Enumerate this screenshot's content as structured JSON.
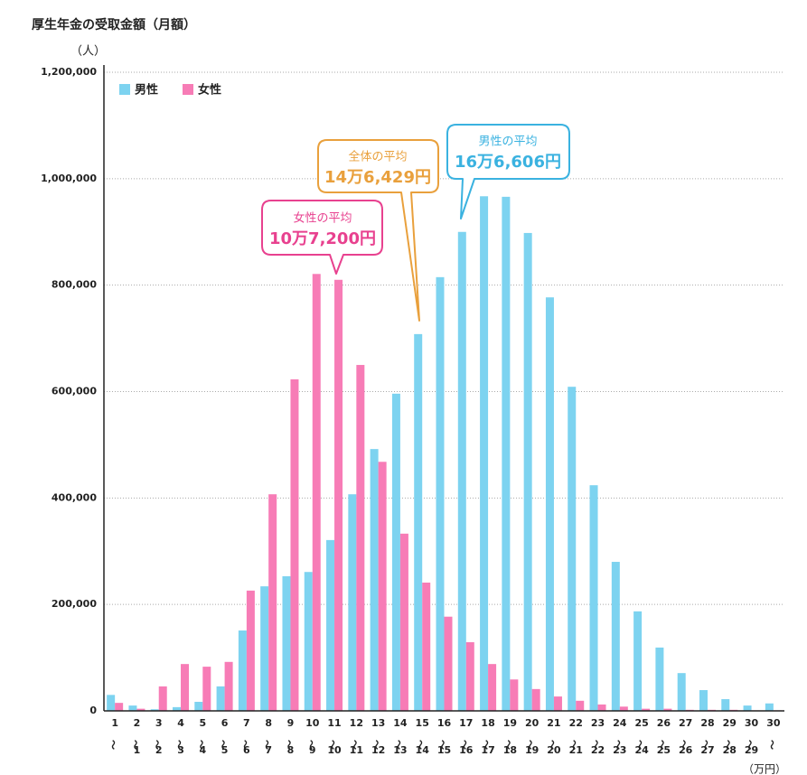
{
  "chart_data": {
    "type": "bar",
    "title": "厚生年金の受取金額（月額）",
    "y_unit": "（人）",
    "x_unit": "（万円）",
    "categories": [
      "1〜",
      "2〜1",
      "3〜2",
      "4〜3",
      "5〜4",
      "6〜5",
      "7〜6",
      "8〜7",
      "9〜8",
      "10〜9",
      "11〜10",
      "12〜11",
      "13〜12",
      "14〜13",
      "15〜14",
      "16〜15",
      "17〜16",
      "18〜17",
      "19〜18",
      "20〜19",
      "21〜20",
      "22〜21",
      "23〜22",
      "24〜23",
      "25〜24",
      "26〜25",
      "27〜26",
      "28〜27",
      "29〜28",
      "30〜29",
      "30〜"
    ],
    "series": [
      {
        "name": "男性",
        "color": "#7dd3f0",
        "values": [
          30000,
          10000,
          3000,
          7000,
          17000,
          46000,
          151000,
          234000,
          253000,
          261000,
          321000,
          407000,
          492000,
          596000,
          708000,
          815000,
          900000,
          967000,
          966000,
          898000,
          777000,
          609000,
          424000,
          280000,
          187000,
          119000,
          71000,
          39000,
          22000,
          10000,
          14000
        ]
      },
      {
        "name": "女性",
        "color": "#f77cb6",
        "values": [
          15000,
          4000,
          46000,
          88000,
          83000,
          92000,
          226000,
          407000,
          623000,
          821000,
          810000,
          650000,
          468000,
          333000,
          241000,
          177000,
          129000,
          88000,
          59000,
          41000,
          27000,
          19000,
          12000,
          8000,
          4000,
          4000,
          2000,
          2000,
          2000,
          1000,
          1000
        ]
      }
    ],
    "ylim": [
      0,
      1200000
    ],
    "yticks": [
      0,
      {
        "value": 200000,
        "label": "200,000"
      },
      {
        "value": 400000,
        "label": "400,000"
      },
      {
        "value": 600000,
        "label": "600,000"
      },
      {
        "value": 800000,
        "label": "800,000"
      },
      {
        "value": 1000000,
        "label": "1,000,000"
      },
      {
        "value": 1200000,
        "label": "1,200,000"
      }
    ],
    "grid": true,
    "legend": "top-left",
    "annotations": [
      {
        "title": "女性の平均",
        "text": "10万7,200円",
        "color": "#e8418f"
      },
      {
        "title": "全体の平均",
        "text": "14万6,429円",
        "color": "#e9a03c"
      },
      {
        "title": "男性の平均",
        "text": "16万6,606円",
        "color": "#3ab2e0"
      }
    ]
  }
}
